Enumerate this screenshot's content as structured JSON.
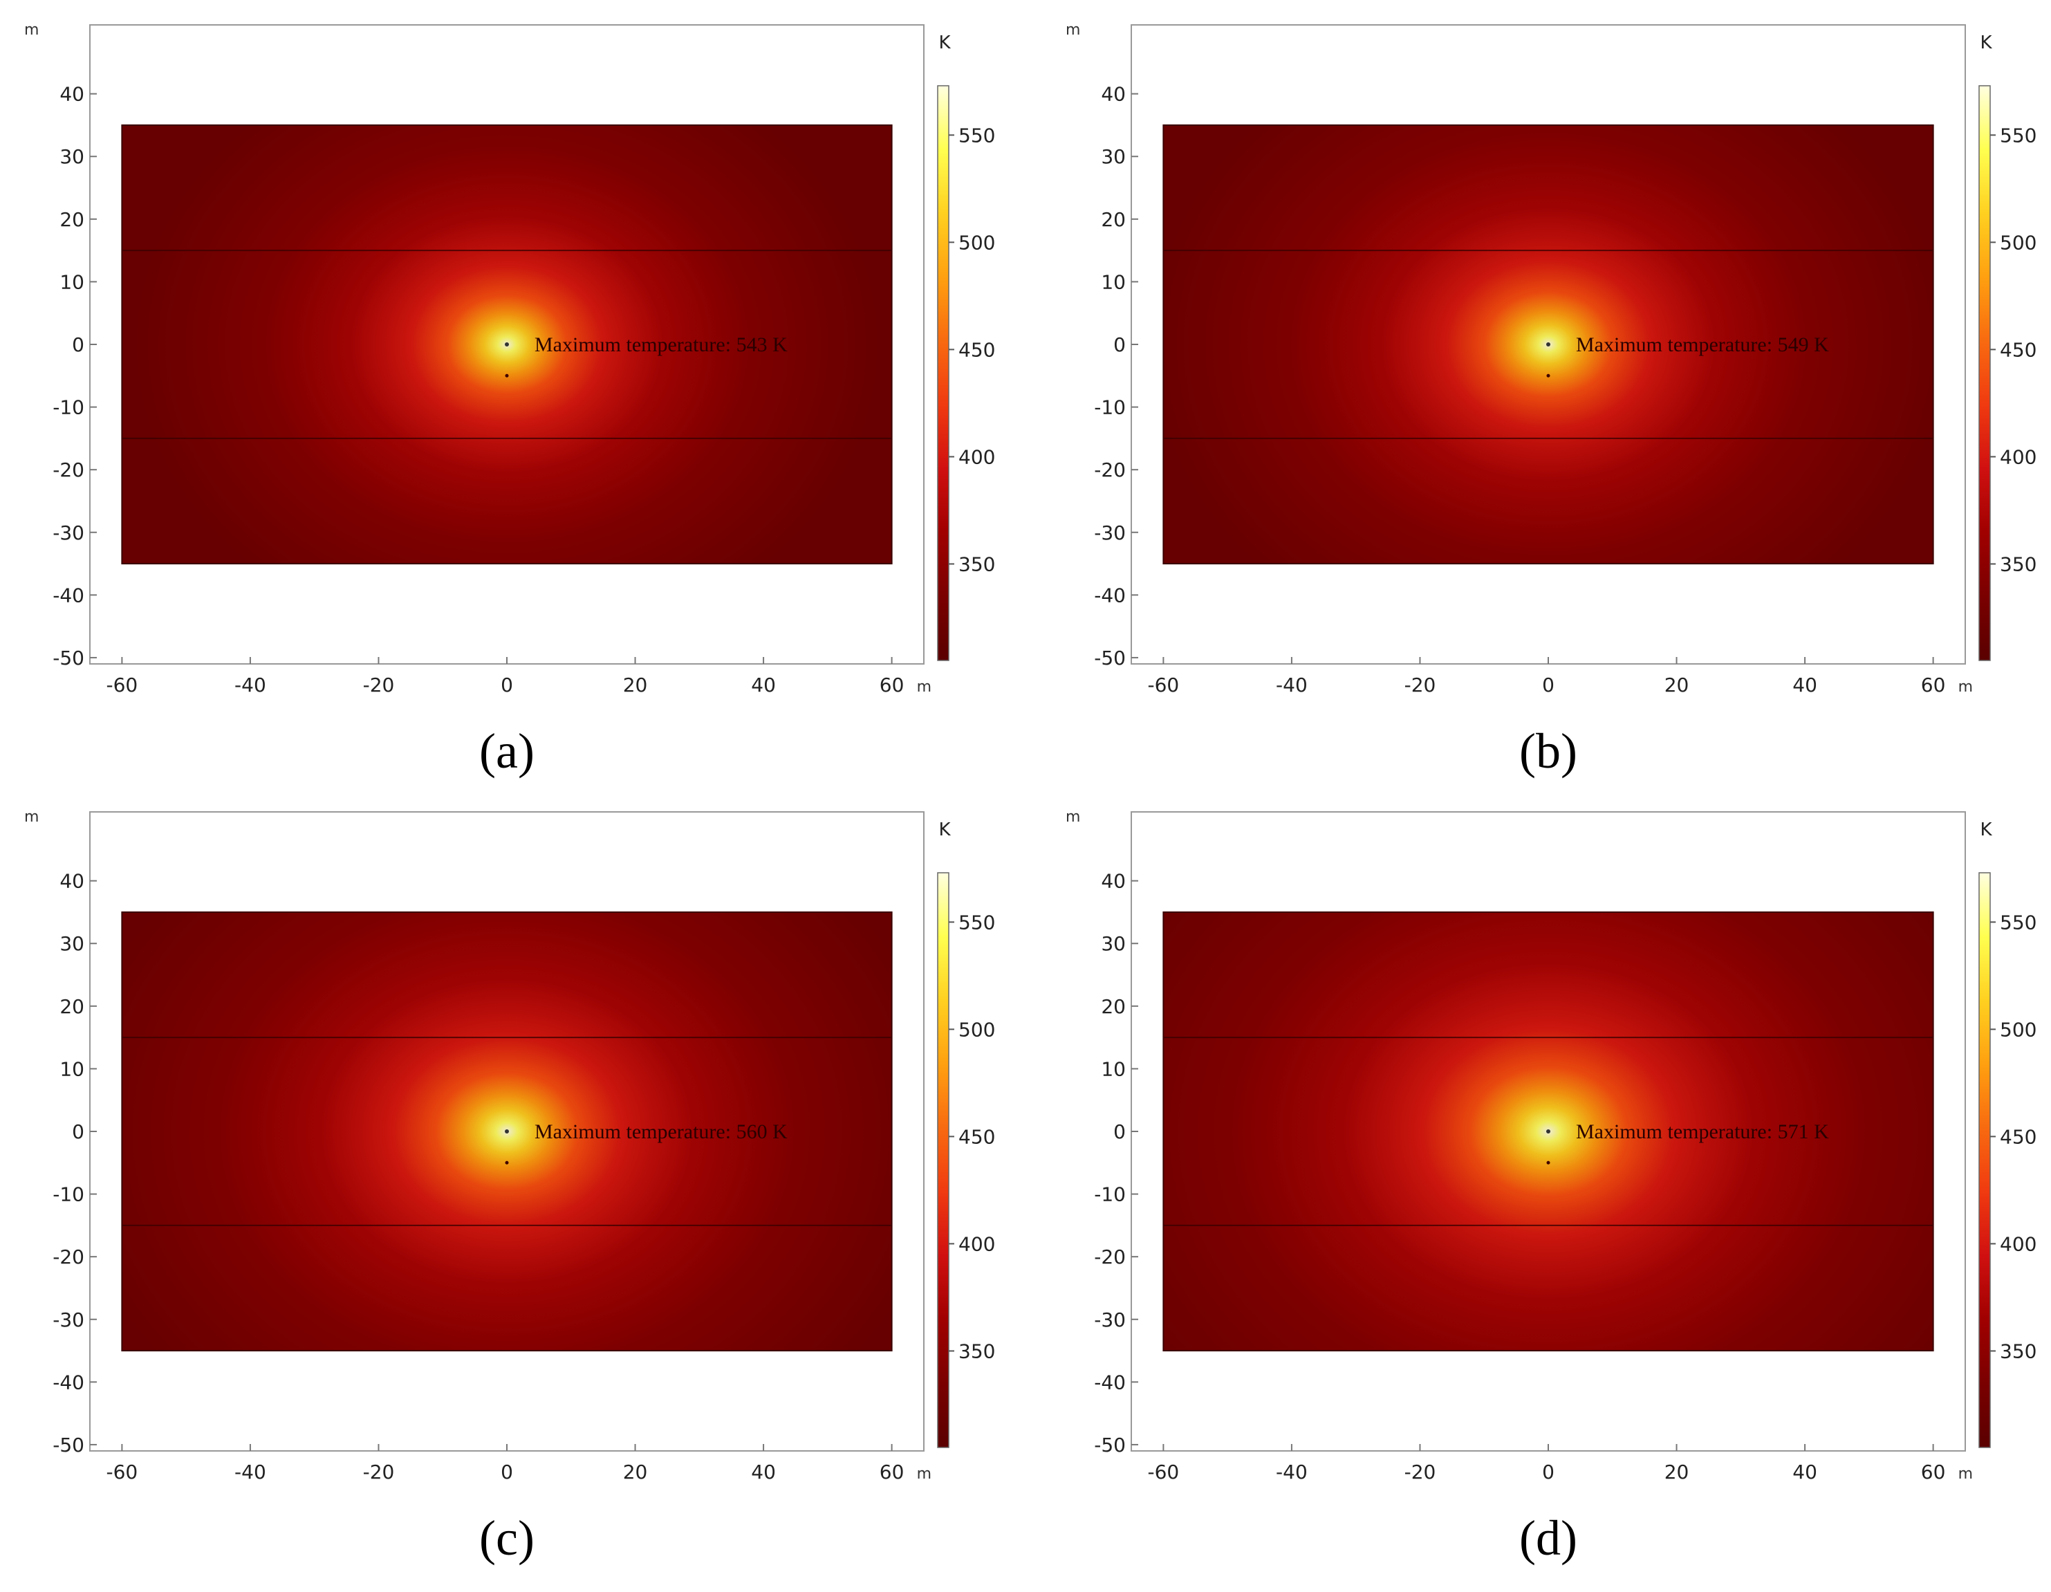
{
  "chart_data": [
    {
      "type": "heatmap",
      "panel_label": "a",
      "x_unit": "m",
      "y_unit": "m",
      "colorbar_unit": "K",
      "xlim": [
        -65,
        65
      ],
      "ylim": [
        -51,
        51
      ],
      "x_ticks": [
        -60,
        -40,
        -20,
        0,
        20,
        40,
        60
      ],
      "y_ticks": [
        40,
        30,
        20,
        10,
        0,
        -10,
        -20,
        -30,
        -40,
        -50
      ],
      "domain_rect": {
        "x": [
          -60,
          60
        ],
        "y": [
          -35,
          35
        ]
      },
      "layer_boundaries_y": [
        15,
        -15
      ],
      "heat_source": {
        "x": 0,
        "y": 0
      },
      "lower_point": {
        "x": 0,
        "y": -5
      },
      "colorbar_ticks": [
        550,
        500,
        450,
        400,
        350
      ],
      "colorbar_range": [
        305,
        573
      ],
      "peak_value": 543,
      "annotation": "Maximum temperature: 543 K"
    },
    {
      "type": "heatmap",
      "panel_label": "b",
      "x_unit": "m",
      "y_unit": "m",
      "colorbar_unit": "K",
      "xlim": [
        -65,
        65
      ],
      "ylim": [
        -51,
        51
      ],
      "x_ticks": [
        -60,
        -40,
        -20,
        0,
        20,
        40,
        60
      ],
      "y_ticks": [
        40,
        30,
        20,
        10,
        0,
        -10,
        -20,
        -30,
        -40,
        -50
      ],
      "domain_rect": {
        "x": [
          -60,
          60
        ],
        "y": [
          -35,
          35
        ]
      },
      "layer_boundaries_y": [
        15,
        -15
      ],
      "heat_source": {
        "x": 0,
        "y": 0
      },
      "lower_point": {
        "x": 0,
        "y": -5
      },
      "colorbar_ticks": [
        550,
        500,
        450,
        400,
        350
      ],
      "colorbar_range": [
        305,
        573
      ],
      "peak_value": 549,
      "annotation": "Maximum temperature: 549 K"
    },
    {
      "type": "heatmap",
      "panel_label": "c",
      "x_unit": "m",
      "y_unit": "m",
      "colorbar_unit": "K",
      "xlim": [
        -65,
        65
      ],
      "ylim": [
        -51,
        51
      ],
      "x_ticks": [
        -60,
        -40,
        -20,
        0,
        20,
        40,
        60
      ],
      "y_ticks": [
        40,
        30,
        20,
        10,
        0,
        -10,
        -20,
        -30,
        -40,
        -50
      ],
      "domain_rect": {
        "x": [
          -60,
          60
        ],
        "y": [
          -35,
          35
        ]
      },
      "layer_boundaries_y": [
        15,
        -15
      ],
      "heat_source": {
        "x": 0,
        "y": 0
      },
      "lower_point": {
        "x": 0,
        "y": -5
      },
      "colorbar_ticks": [
        550,
        500,
        450,
        400,
        350
      ],
      "colorbar_range": [
        305,
        573
      ],
      "peak_value": 560,
      "annotation": "Maximum temperature: 560 K"
    },
    {
      "type": "heatmap",
      "panel_label": "d",
      "x_unit": "m",
      "y_unit": "m",
      "colorbar_unit": "K",
      "xlim": [
        -65,
        65
      ],
      "ylim": [
        -51,
        51
      ],
      "x_ticks": [
        -60,
        -40,
        -20,
        0,
        20,
        40,
        60
      ],
      "y_ticks": [
        40,
        30,
        20,
        10,
        0,
        -10,
        -20,
        -30,
        -40,
        -50
      ],
      "domain_rect": {
        "x": [
          -60,
          60
        ],
        "y": [
          -35,
          35
        ]
      },
      "layer_boundaries_y": [
        15,
        -15
      ],
      "heat_source": {
        "x": 0,
        "y": 0
      },
      "lower_point": {
        "x": 0,
        "y": -5
      },
      "colorbar_ticks": [
        550,
        500,
        450,
        400,
        350
      ],
      "colorbar_range": [
        305,
        573
      ],
      "peak_value": 571,
      "annotation": "Maximum temperature: 571 K"
    }
  ],
  "captions": [
    "(a)",
    "(b)",
    "(c)",
    "(d)"
  ],
  "colormap": {
    "name": "heat",
    "stops": [
      "#5a0000",
      "#7a0000",
      "#a00000",
      "#d01010",
      "#f03a10",
      "#f86a10",
      "#ffa010",
      "#ffd020",
      "#ffff50",
      "#ffffe0"
    ]
  }
}
